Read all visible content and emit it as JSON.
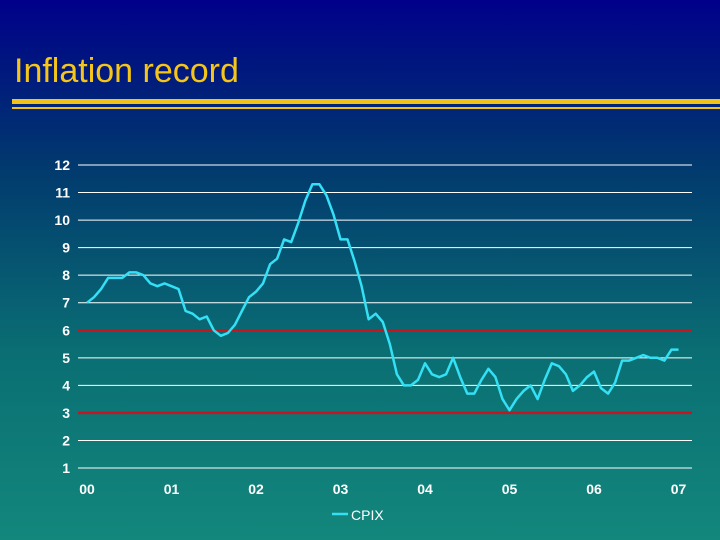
{
  "slide": {
    "title": "Inflation record"
  },
  "chart_data": {
    "type": "line",
    "title": "",
    "xlabel": "",
    "ylabel": "",
    "ylim": [
      1,
      12
    ],
    "y_ticks": [
      1,
      2,
      3,
      4,
      5,
      6,
      7,
      8,
      9,
      10,
      11,
      12
    ],
    "x_ticks": [
      "00",
      "01",
      "02",
      "03",
      "04",
      "05",
      "06",
      "07"
    ],
    "xlim": [
      0,
      7.3
    ],
    "grid": true,
    "legend": "bottom-center",
    "reference_lines": [
      {
        "value": 6,
        "color": "#c8141e"
      },
      {
        "value": 3,
        "color": "#c8141e"
      }
    ],
    "series": [
      {
        "name": "CPIX",
        "color": "#33e0f5",
        "x": [
          0,
          0.083,
          0.167,
          0.25,
          0.333,
          0.417,
          0.5,
          0.583,
          0.667,
          0.75,
          0.833,
          0.917,
          1.0,
          1.083,
          1.167,
          1.25,
          1.333,
          1.417,
          1.5,
          1.583,
          1.667,
          1.75,
          1.833,
          1.917,
          2.0,
          2.083,
          2.167,
          2.25,
          2.333,
          2.417,
          2.5,
          2.583,
          2.667,
          2.75,
          2.833,
          2.917,
          3.0,
          3.083,
          3.167,
          3.25,
          3.333,
          3.417,
          3.5,
          3.583,
          3.667,
          3.75,
          3.833,
          3.917,
          4.0,
          4.083,
          4.167,
          4.25,
          4.333,
          4.417,
          4.5,
          4.583,
          4.667,
          4.75,
          4.833,
          4.917,
          5.0,
          5.083,
          5.167,
          5.25,
          5.333,
          5.417,
          5.5,
          5.583,
          5.667,
          5.75,
          5.833,
          5.917,
          6.0,
          6.083,
          6.167,
          6.25,
          6.333,
          6.417,
          6.5,
          6.583,
          6.667,
          6.75,
          6.833,
          6.917,
          7.0
        ],
        "values": [
          7.0,
          7.2,
          7.5,
          7.9,
          7.9,
          7.9,
          8.1,
          8.1,
          8.0,
          7.7,
          7.6,
          7.7,
          7.6,
          7.5,
          6.7,
          6.6,
          6.4,
          6.5,
          6.0,
          5.8,
          5.9,
          6.2,
          6.7,
          7.2,
          7.4,
          7.7,
          8.4,
          8.6,
          9.3,
          9.2,
          9.9,
          10.7,
          11.3,
          11.3,
          10.9,
          10.2,
          9.3,
          9.3,
          8.5,
          7.6,
          6.4,
          6.6,
          6.3,
          5.5,
          4.4,
          4.0,
          4.0,
          4.2,
          4.8,
          4.4,
          4.3,
          4.4,
          5.0,
          4.3,
          3.7,
          3.7,
          4.2,
          4.6,
          4.3,
          3.5,
          3.1,
          3.5,
          3.8,
          4.0,
          3.5,
          4.2,
          4.8,
          4.7,
          4.4,
          3.8,
          4.0,
          4.3,
          4.5,
          3.9,
          3.7,
          4.1,
          4.9,
          4.9,
          5.0,
          5.1,
          5.0,
          5.0,
          4.9,
          5.3,
          5.3
        ]
      }
    ]
  }
}
